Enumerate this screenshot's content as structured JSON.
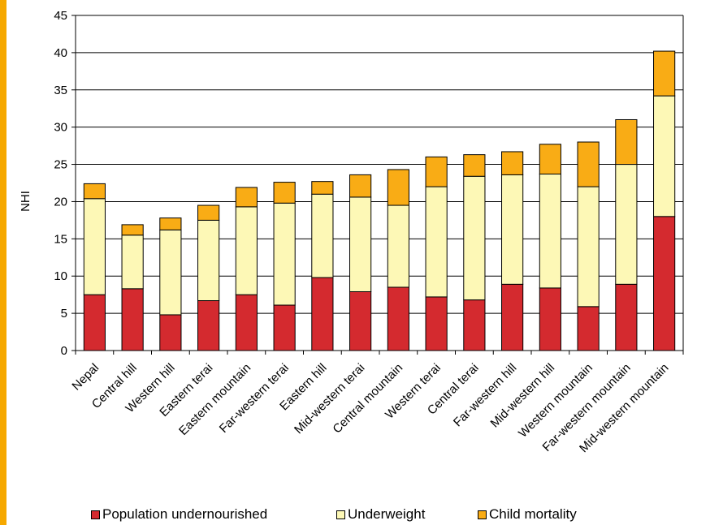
{
  "chart_data": {
    "type": "bar",
    "stacked": true,
    "ylabel": "NHI",
    "ylim": [
      0,
      45
    ],
    "yticks": [
      0,
      5,
      10,
      15,
      20,
      25,
      30,
      35,
      40,
      45
    ],
    "grid": true,
    "legend_position": "bottom",
    "categories": [
      "Nepal",
      "Central hill",
      "Western hill",
      "Eastern terai",
      "Eastern mountain",
      "Far-western terai",
      "Eastern hill",
      "Mid-western terai",
      "Central mountain",
      "Western terai",
      "Central terai",
      "Far-western hill",
      "Mid-western hill",
      "Western mountain",
      "Far-western mountain",
      "Mid-western mountain"
    ],
    "series": [
      {
        "name": "Population undernourished",
        "color": "#d42a2f",
        "values": [
          7.5,
          8.3,
          4.8,
          6.7,
          7.5,
          6.1,
          9.8,
          7.9,
          8.5,
          7.2,
          6.8,
          8.9,
          8.4,
          5.9,
          8.9,
          18.0
        ]
      },
      {
        "name": "Underweight",
        "color": "#fdf8b6",
        "values": [
          12.9,
          7.2,
          11.4,
          10.8,
          11.8,
          13.7,
          11.2,
          12.7,
          11.0,
          14.8,
          16.6,
          14.7,
          15.3,
          16.1,
          16.1,
          16.2
        ]
      },
      {
        "name": "Child mortality",
        "color": "#f9ac15",
        "values": [
          2.0,
          1.4,
          1.6,
          2.0,
          2.6,
          2.8,
          1.7,
          3.0,
          4.8,
          4.0,
          2.9,
          3.1,
          4.0,
          6.0,
          6.0,
          6.0
        ]
      }
    ]
  }
}
